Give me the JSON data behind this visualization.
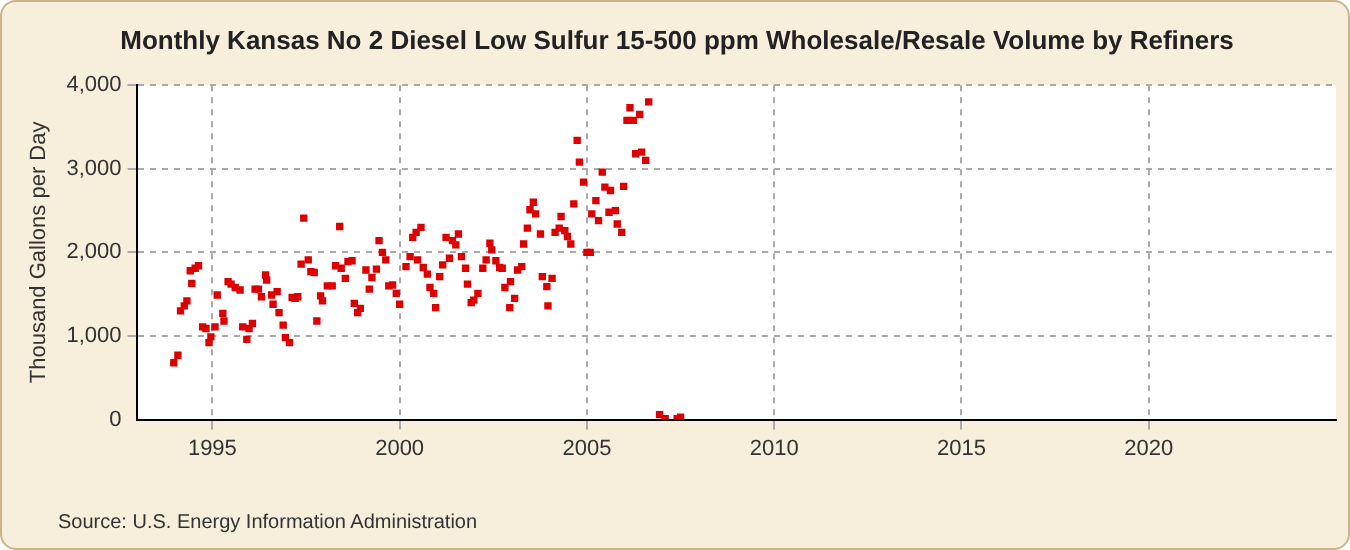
{
  "chart_data": {
    "type": "scatter",
    "title": "Monthly Kansas No 2 Diesel Low Sulfur 15-500 ppm Wholesale/Resale Volume by Refiners",
    "ylabel": "Thousand Gallons per Day",
    "annotations": [
      "Source: U.S. Energy Information Administration"
    ],
    "x": [
      1993.97,
      1994.08,
      1994.15,
      1994.25,
      1994.32,
      1994.41,
      1994.45,
      1994.54,
      1994.63,
      1994.74,
      1994.83,
      1994.91,
      1994.96,
      1995.07,
      1995.13,
      1995.28,
      1995.31,
      1995.42,
      1995.5,
      1995.61,
      1995.74,
      1995.81,
      1995.92,
      1995.98,
      1996.07,
      1996.14,
      1996.23,
      1996.31,
      1996.42,
      1996.45,
      1996.58,
      1996.62,
      1996.73,
      1996.78,
      1996.89,
      1996.95,
      1997.06,
      1997.13,
      1997.21,
      1997.28,
      1997.37,
      1997.44,
      1997.56,
      1997.63,
      1997.72,
      1997.79,
      1997.89,
      1997.94,
      1998.07,
      1998.2,
      1998.29,
      1998.4,
      1998.44,
      1998.55,
      1998.62,
      1998.73,
      1998.79,
      1998.88,
      1998.95,
      1999.1,
      1999.19,
      1999.26,
      1999.38,
      1999.45,
      1999.54,
      1999.63,
      1999.71,
      1999.81,
      1999.91,
      2000.0,
      2000.17,
      2000.28,
      2000.35,
      2000.44,
      2000.48,
      2000.57,
      2000.63,
      2000.74,
      2000.81,
      2000.91,
      2000.96,
      2001.07,
      2001.15,
      2001.24,
      2001.33,
      2001.41,
      2001.5,
      2001.57,
      2001.65,
      2001.76,
      2001.81,
      2001.91,
      2001.98,
      2002.09,
      2002.22,
      2002.31,
      2002.41,
      2002.46,
      2002.57,
      2002.67,
      2002.74,
      2002.81,
      2002.94,
      2002.96,
      2003.07,
      2003.15,
      2003.26,
      2003.31,
      2003.41,
      2003.48,
      2003.57,
      2003.63,
      2003.76,
      2003.81,
      2003.93,
      2003.96,
      2004.07,
      2004.15,
      2004.26,
      2004.31,
      2004.41,
      2004.48,
      2004.57,
      2004.65,
      2004.74,
      2004.8,
      2004.91,
      2005.0,
      2005.09,
      2005.13,
      2005.24,
      2005.31,
      2005.41,
      2005.48,
      2005.59,
      2005.63,
      2005.76,
      2005.81,
      2005.93,
      2005.98,
      2006.07,
      2006.15,
      2006.24,
      2006.3,
      2006.41,
      2006.46,
      2006.57,
      2006.65,
      2006.94,
      2007.09,
      2007.41,
      2007.5
    ],
    "series": [
      {
        "color": "#dd0000",
        "values": [
          680,
          770,
          1300,
          1360,
          1420,
          1780,
          1630,
          1810,
          1840,
          1110,
          1090,
          920,
          990,
          1110,
          1490,
          1270,
          1180,
          1650,
          1620,
          1580,
          1550,
          1110,
          960,
          1090,
          1150,
          1560,
          1560,
          1470,
          1730,
          1670,
          1490,
          1380,
          1530,
          1280,
          1130,
          980,
          920,
          1460,
          1450,
          1470,
          1860,
          2410,
          1910,
          1770,
          1760,
          1180,
          1480,
          1420,
          1600,
          1600,
          1840,
          2310,
          1810,
          1690,
          1890,
          1900,
          1390,
          1280,
          1330,
          1790,
          1560,
          1700,
          1800,
          2140,
          2000,
          1910,
          1600,
          1610,
          1510,
          1380,
          1830,
          1950,
          2180,
          2240,
          1910,
          2300,
          1820,
          1740,
          1580,
          1510,
          1340,
          1710,
          1850,
          2180,
          1930,
          2140,
          2090,
          2220,
          1950,
          1810,
          1620,
          1400,
          1430,
          1510,
          1810,
          1910,
          2110,
          2030,
          1900,
          1820,
          1810,
          1580,
          1340,
          1650,
          1450,
          1790,
          1830,
          2100,
          2290,
          2510,
          2600,
          2460,
          2220,
          1710,
          1590,
          1360,
          1690,
          2240,
          2290,
          2430,
          2260,
          2190,
          2100,
          2580,
          3340,
          3080,
          2840,
          2000,
          2000,
          2460,
          2620,
          2380,
          2960,
          2780,
          2480,
          2740,
          2500,
          2340,
          2240,
          2790,
          3580,
          3730,
          3580,
          3180,
          3650,
          3200,
          3100,
          3800,
          60,
          10,
          10,
          30
        ]
      }
    ],
    "marker": "square",
    "grid": true,
    "legend": false,
    "xlim": [
      1993,
      2025
    ],
    "xticks": [
      1995,
      2000,
      2005,
      2010,
      2015,
      2020
    ],
    "ylim": [
      0,
      4000
    ],
    "yticks": [
      0,
      {
        "value": 1000,
        "label": "1,000"
      },
      {
        "value": 2000,
        "label": "2,000"
      },
      {
        "value": 3000,
        "label": "3,000"
      },
      {
        "value": 4000,
        "label": "4,000"
      }
    ]
  }
}
